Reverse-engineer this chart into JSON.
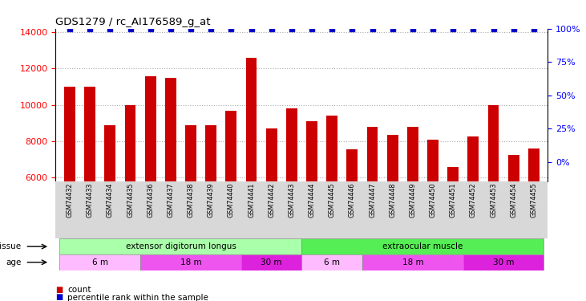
{
  "title": "GDS1279 / rc_AI176589_g_at",
  "samples": [
    "GSM74432",
    "GSM74433",
    "GSM74434",
    "GSM74435",
    "GSM74436",
    "GSM74437",
    "GSM74438",
    "GSM74439",
    "GSM74440",
    "GSM74441",
    "GSM74442",
    "GSM74443",
    "GSM74444",
    "GSM74445",
    "GSM74446",
    "GSM74447",
    "GSM74448",
    "GSM74449",
    "GSM74450",
    "GSM74451",
    "GSM74452",
    "GSM74453",
    "GSM74454",
    "GSM74455"
  ],
  "counts": [
    11000,
    11000,
    8900,
    10000,
    11600,
    11500,
    8900,
    8900,
    9700,
    12600,
    8700,
    9800,
    9100,
    9400,
    7550,
    8800,
    8350,
    8800,
    8100,
    6600,
    8250,
    10000,
    7250,
    7600
  ],
  "bar_color": "#cc0000",
  "dot_color": "#0000cc",
  "ylim_left": [
    5800,
    14200
  ],
  "yticks_left": [
    6000,
    8000,
    10000,
    12000,
    14000
  ],
  "ylim_right": [
    -14.5,
    100
  ],
  "yticks_right": [
    0,
    25,
    50,
    75,
    100
  ],
  "yticklabels_right": [
    "0%",
    "25%",
    "50%",
    "75%",
    "100%"
  ],
  "chart_bg": "#ffffff",
  "label_bg": "#d8d8d8",
  "tissue_groups": [
    {
      "label": "extensor digitorum longus",
      "start": 0,
      "end": 12,
      "color": "#aaffaa"
    },
    {
      "label": "extraocular muscle",
      "start": 12,
      "end": 24,
      "color": "#55ee55"
    }
  ],
  "age_groups": [
    {
      "label": "6 m",
      "start": 0,
      "end": 4,
      "color": "#ffbbff"
    },
    {
      "label": "18 m",
      "start": 4,
      "end": 9,
      "color": "#ee55ee"
    },
    {
      "label": "30 m",
      "start": 9,
      "end": 12,
      "color": "#dd22dd"
    },
    {
      "label": "6 m",
      "start": 12,
      "end": 15,
      "color": "#ffbbff"
    },
    {
      "label": "18 m",
      "start": 15,
      "end": 20,
      "color": "#ee55ee"
    },
    {
      "label": "30 m",
      "start": 20,
      "end": 24,
      "color": "#dd22dd"
    }
  ]
}
